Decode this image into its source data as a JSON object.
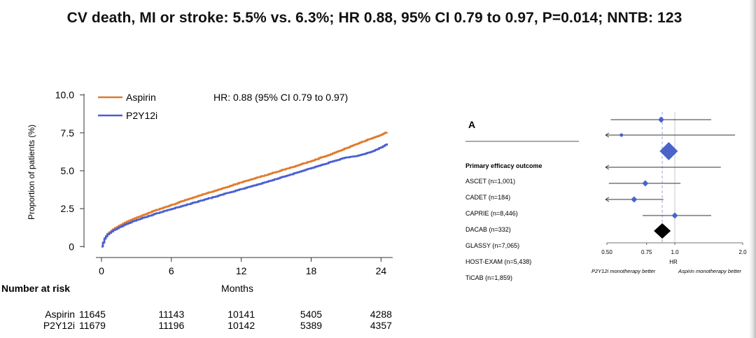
{
  "headline": "CV death, MI or stroke: 5.5% vs. 6.3%; HR 0.88, 95% CI 0.79 to 0.97, P=0.014; NNTB: 123",
  "colors": {
    "aspirin": "#e07b2c",
    "p2y12i": "#4a5fd0",
    "forest_marker": "#4a63c9",
    "overall_marker": "#000000"
  },
  "chart_data": [
    {
      "type": "line",
      "title": "",
      "xlabel": "Months",
      "ylabel": "Proportion of patients (%)",
      "xlim": [
        -1.5,
        25
      ],
      "ylim": [
        -0.4,
        10.4
      ],
      "x_ticks": [
        0,
        6,
        12,
        18,
        24
      ],
      "x_tick_labels": [
        "0",
        "6",
        "12",
        "18",
        "24"
      ],
      "y_ticks": [
        0,
        2.5,
        5.0,
        7.5,
        10.0
      ],
      "y_tick_labels": [
        "0",
        "2.5",
        "5.0",
        "7.5",
        "10.0"
      ],
      "grid": false,
      "legend_position": "top-left",
      "annotation": "HR: 0.88 (95% CI 0.79 to 0.97)",
      "series": [
        {
          "name": "Aspirin",
          "color": "#e07b2c",
          "x": [
            0,
            0.25,
            0.5,
            1,
            1.5,
            2,
            3,
            4,
            5,
            6,
            7,
            8,
            9,
            10,
            11,
            12,
            13,
            14,
            15,
            16,
            17,
            18,
            19,
            20,
            21,
            22,
            23,
            24,
            24.5
          ],
          "y": [
            0,
            0.55,
            0.85,
            1.15,
            1.38,
            1.58,
            1.92,
            2.22,
            2.5,
            2.76,
            3.02,
            3.27,
            3.52,
            3.76,
            4.0,
            4.24,
            4.47,
            4.7,
            4.93,
            5.16,
            5.4,
            5.65,
            5.92,
            6.2,
            6.5,
            6.8,
            7.1,
            7.38,
            7.55
          ]
        },
        {
          "name": "P2Y12i",
          "color": "#4a5fd0",
          "x": [
            0,
            0.25,
            0.5,
            1,
            1.5,
            2,
            3,
            4,
            5,
            6,
            7,
            8,
            9,
            10,
            11,
            12,
            13,
            14,
            15,
            16,
            17,
            18,
            19,
            20,
            21,
            22,
            23,
            24,
            24.5
          ],
          "y": [
            0,
            0.52,
            0.8,
            1.08,
            1.28,
            1.46,
            1.76,
            2.02,
            2.26,
            2.48,
            2.7,
            2.92,
            3.14,
            3.36,
            3.58,
            3.8,
            4.02,
            4.24,
            4.46,
            4.7,
            4.94,
            5.18,
            5.42,
            5.66,
            5.88,
            6.0,
            6.22,
            6.55,
            6.8
          ]
        }
      ],
      "at_risk": {
        "title": "Number at risk",
        "rows": [
          {
            "label": "Aspirin",
            "values": [
              "11645",
              "11143",
              "10141",
              "5405",
              "4288"
            ]
          },
          {
            "label": "P2Y12i",
            "values": [
              "11679",
              "11196",
              "10142",
              "5389",
              "4357"
            ]
          }
        ]
      }
    },
    {
      "type": "forest",
      "panel_label": "A",
      "section_header": "Primary efficacy outcome",
      "study_labels": [
        "ASCET (n=1,001)",
        "CADET (n=184)",
        "CAPRIE (n=8,446)",
        "DACAB (n=332)",
        "GLASSY (n=7,065)",
        "HOST-EXAM (n=5,438)",
        "TiCAB (n=1,859)"
      ],
      "x_scale": "log",
      "xlim": [
        0.5,
        2.0
      ],
      "x_ticks": [
        0.5,
        0.75,
        1.0,
        2.0
      ],
      "x_tick_labels": [
        "0.50",
        "0.75",
        "1.0",
        "2.0"
      ],
      "xlabel": "HR",
      "reference_line": 1.0,
      "pooled_line": 0.88,
      "favors_left": "P2Y12i monotherapy better",
      "favors_right": "Aspirin monotherapy better",
      "rows": [
        {
          "hr": 0.87,
          "lo": 0.52,
          "hi": 1.45,
          "size": "small",
          "left_arrow": false
        },
        {
          "hr": 0.58,
          "lo": 0.5,
          "hi": 1.85,
          "size": "tiny",
          "left_arrow": true
        },
        {
          "hr": 0.94,
          "lo": 0.86,
          "hi": 1.03,
          "size": "large",
          "left_arrow": false
        },
        {
          "hr": null,
          "lo": 0.5,
          "hi": 1.6,
          "size": "none",
          "left_arrow": true
        },
        {
          "hr": 0.74,
          "lo": 0.51,
          "hi": 1.06,
          "size": "small",
          "left_arrow": false
        },
        {
          "hr": 0.66,
          "lo": 0.5,
          "hi": 0.89,
          "size": "small",
          "left_arrow": true
        },
        {
          "hr": 1.0,
          "lo": 0.72,
          "hi": 1.45,
          "size": "small",
          "left_arrow": false
        },
        {
          "hr": 0.88,
          "lo": 0.79,
          "hi": 0.97,
          "size": "overall",
          "left_arrow": false
        }
      ]
    }
  ]
}
